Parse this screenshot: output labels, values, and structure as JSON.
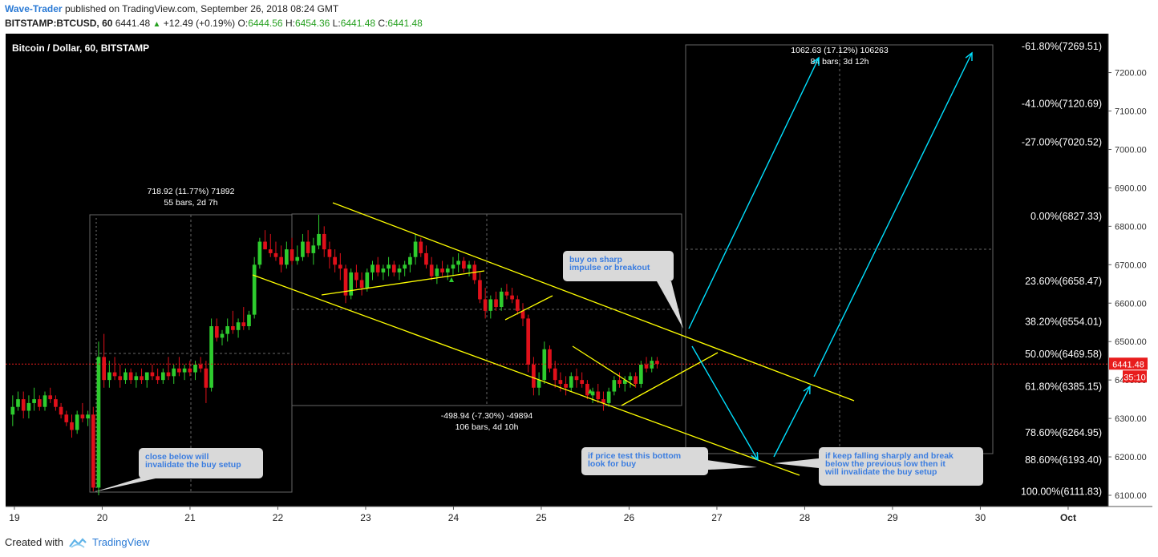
{
  "header": {
    "author": "Wave-Trader",
    "published": "published on TradingView.com, September 26, 2018 08:24 GMT",
    "symbol": "BITSTAMP:BTCUSD, 60",
    "last": "6441.48",
    "change": "+12.49 (+0.19%)",
    "o_label": "O:",
    "o": "6444.56",
    "h_label": "H:",
    "h": "6454.36",
    "l_label": "L:",
    "l": "6441.48",
    "c_label": "C:",
    "c": "6441.48"
  },
  "footer": {
    "created_with": "Created with",
    "brand": "TradingView"
  },
  "colors": {
    "background": "#000000",
    "up": "#2ecc2e",
    "down": "#e0101a",
    "channel": "#ffff00",
    "arrow": "#00e0ff",
    "price_badge": "#e81c1c",
    "callout_bg": "#d9d9d9",
    "callout_text": "#3b7de0"
  },
  "chart_data": {
    "type": "candlestick",
    "title": "Bitcoin / Dollar, 60, BITSTAMP",
    "x_ticks": [
      "19",
      "20",
      "21",
      "22",
      "23",
      "24",
      "25",
      "26",
      "27",
      "28",
      "29",
      "30",
      "Oct"
    ],
    "y_ticks": [
      6100,
      6200,
      6300,
      6400,
      6500,
      6600,
      6700,
      6800,
      6900,
      7000,
      7100,
      7200
    ],
    "y_range": [
      6080,
      7300
    ],
    "current_price": "6441.48",
    "countdown": "35:10",
    "candles_ohlc_hourly_day19_to_26": [
      [
        6310,
        6360,
        6280,
        6330
      ],
      [
        6330,
        6370,
        6320,
        6350
      ],
      [
        6350,
        6370,
        6300,
        6320
      ],
      [
        6320,
        6360,
        6300,
        6340
      ],
      [
        6340,
        6380,
        6320,
        6350
      ],
      [
        6350,
        6360,
        6320,
        6330
      ],
      [
        6330,
        6370,
        6320,
        6360
      ],
      [
        6360,
        6380,
        6340,
        6350
      ],
      [
        6350,
        6360,
        6320,
        6330
      ],
      [
        6330,
        6340,
        6300,
        6310
      ],
      [
        6310,
        6320,
        6280,
        6290
      ],
      [
        6290,
        6310,
        6250,
        6270
      ],
      [
        6270,
        6320,
        6260,
        6310
      ],
      [
        6310,
        6340,
        6290,
        6300
      ],
      [
        6300,
        6320,
        6280,
        6310
      ],
      [
        6310,
        6330,
        6110,
        6120
      ],
      [
        6120,
        6500,
        6100,
        6460
      ],
      [
        6460,
        6520,
        6380,
        6400
      ],
      [
        6400,
        6450,
        6380,
        6420
      ],
      [
        6420,
        6460,
        6400,
        6410
      ],
      [
        6410,
        6440,
        6380,
        6400
      ],
      [
        6400,
        6430,
        6390,
        6420
      ],
      [
        6420,
        6430,
        6390,
        6400
      ],
      [
        6400,
        6420,
        6380,
        6410
      ],
      [
        6410,
        6430,
        6390,
        6400
      ],
      [
        6400,
        6420,
        6380,
        6420
      ],
      [
        6420,
        6440,
        6400,
        6410
      ],
      [
        6410,
        6430,
        6390,
        6400
      ],
      [
        6400,
        6430,
        6390,
        6420
      ],
      [
        6420,
        6460,
        6400,
        6410
      ],
      [
        6410,
        6440,
        6390,
        6430
      ],
      [
        6430,
        6460,
        6410,
        6420
      ],
      [
        6420,
        6440,
        6400,
        6430
      ],
      [
        6430,
        6450,
        6410,
        6420
      ],
      [
        6420,
        6450,
        6400,
        6440
      ],
      [
        6440,
        6460,
        6420,
        6430
      ],
      [
        6430,
        6450,
        6340,
        6380
      ],
      [
        6380,
        6560,
        6370,
        6540
      ],
      [
        6540,
        6560,
        6500,
        6510
      ],
      [
        6510,
        6530,
        6490,
        6520
      ],
      [
        6520,
        6560,
        6500,
        6540
      ],
      [
        6540,
        6580,
        6520,
        6530
      ],
      [
        6530,
        6560,
        6510,
        6550
      ],
      [
        6550,
        6590,
        6530,
        6540
      ],
      [
        6540,
        6580,
        6530,
        6570
      ],
      [
        6570,
        6720,
        6560,
        6700
      ],
      [
        6700,
        6770,
        6690,
        6760
      ],
      [
        6760,
        6790,
        6740,
        6740
      ],
      [
        6740,
        6780,
        6720,
        6730
      ],
      [
        6730,
        6760,
        6710,
        6720
      ],
      [
        6720,
        6750,
        6680,
        6700
      ],
      [
        6700,
        6760,
        6690,
        6740
      ],
      [
        6740,
        6770,
        6700,
        6710
      ],
      [
        6710,
        6750,
        6700,
        6720
      ],
      [
        6720,
        6780,
        6710,
        6760
      ],
      [
        6760,
        6790,
        6720,
        6730
      ],
      [
        6730,
        6770,
        6700,
        6750
      ],
      [
        6750,
        6830,
        6740,
        6780
      ],
      [
        6780,
        6800,
        6720,
        6740
      ],
      [
        6740,
        6760,
        6690,
        6720
      ],
      [
        6720,
        6740,
        6680,
        6700
      ],
      [
        6700,
        6730,
        6660,
        6690
      ],
      [
        6690,
        6700,
        6600,
        6620
      ],
      [
        6620,
        6690,
        6610,
        6680
      ],
      [
        6680,
        6700,
        6640,
        6660
      ],
      [
        6660,
        6680,
        6620,
        6640
      ],
      [
        6640,
        6690,
        6630,
        6680
      ],
      [
        6680,
        6710,
        6660,
        6700
      ],
      [
        6700,
        6720,
        6670,
        6680
      ],
      [
        6680,
        6700,
        6660,
        6690
      ],
      [
        6690,
        6720,
        6670,
        6700
      ],
      [
        6700,
        6710,
        6670,
        6680
      ],
      [
        6680,
        6700,
        6660,
        6690
      ],
      [
        6690,
        6710,
        6670,
        6700
      ],
      [
        6700,
        6730,
        6680,
        6720
      ],
      [
        6720,
        6780,
        6700,
        6760
      ],
      [
        6760,
        6770,
        6720,
        6730
      ],
      [
        6730,
        6750,
        6690,
        6700
      ],
      [
        6700,
        6720,
        6660,
        6670
      ],
      [
        6670,
        6700,
        6650,
        6690
      ],
      [
        6690,
        6710,
        6670,
        6680
      ],
      [
        6680,
        6700,
        6660,
        6690
      ],
      [
        6690,
        6720,
        6670,
        6700
      ],
      [
        6700,
        6730,
        6680,
        6710
      ],
      [
        6710,
        6720,
        6680,
        6690
      ],
      [
        6690,
        6710,
        6670,
        6700
      ],
      [
        6700,
        6710,
        6650,
        6660
      ],
      [
        6660,
        6680,
        6600,
        6610
      ],
      [
        6610,
        6640,
        6560,
        6580
      ],
      [
        6580,
        6620,
        6560,
        6610
      ],
      [
        6610,
        6630,
        6580,
        6590
      ],
      [
        6590,
        6640,
        6580,
        6630
      ],
      [
        6630,
        6650,
        6610,
        6620
      ],
      [
        6620,
        6640,
        6600,
        6610
      ],
      [
        6610,
        6620,
        6570,
        6580
      ],
      [
        6580,
        6600,
        6540,
        6560
      ],
      [
        6560,
        6570,
        6420,
        6440
      ],
      [
        6440,
        6460,
        6360,
        6380
      ],
      [
        6380,
        6420,
        6360,
        6400
      ],
      [
        6400,
        6500,
        6390,
        6480
      ],
      [
        6480,
        6490,
        6420,
        6430
      ],
      [
        6430,
        6450,
        6380,
        6400
      ],
      [
        6400,
        6420,
        6370,
        6390
      ],
      [
        6390,
        6410,
        6360,
        6380
      ],
      [
        6380,
        6420,
        6370,
        6410
      ],
      [
        6410,
        6430,
        6380,
        6400
      ],
      [
        6400,
        6420,
        6380,
        6390
      ],
      [
        6390,
        6400,
        6350,
        6360
      ],
      [
        6360,
        6380,
        6340,
        6370
      ],
      [
        6370,
        6390,
        6340,
        6350
      ],
      [
        6350,
        6370,
        6320,
        6340
      ],
      [
        6340,
        6380,
        6330,
        6370
      ],
      [
        6370,
        6410,
        6360,
        6400
      ],
      [
        6400,
        6420,
        6380,
        6390
      ],
      [
        6390,
        6410,
        6370,
        6400
      ],
      [
        6400,
        6420,
        6380,
        6410
      ],
      [
        6410,
        6420,
        6380,
        6390
      ],
      [
        6390,
        6450,
        6380,
        6440
      ],
      [
        6440,
        6460,
        6420,
        6430
      ],
      [
        6430,
        6460,
        6420,
        6450
      ],
      [
        6450,
        6460,
        6430,
        6441.48
      ]
    ],
    "fib_levels": [
      {
        "label": "-61.80%(7269.51)",
        "price": 7269.51
      },
      {
        "label": "-41.00%(7120.69)",
        "price": 7120.69
      },
      {
        "label": "-27.00%(7020.52)",
        "price": 7020.52
      },
      {
        "label": "0.00%(6827.33)",
        "price": 6827.33
      },
      {
        "label": "23.60%(6658.47)",
        "price": 6658.47
      },
      {
        "label": "38.20%(6554.01)",
        "price": 6554.01
      },
      {
        "label": "50.00%(6469.58)",
        "price": 6469.58
      },
      {
        "label": "61.80%(6385.15)",
        "price": 6385.15
      },
      {
        "label": "78.60%(6264.95)",
        "price": 6264.95
      },
      {
        "label": "88.60%(6193.40)",
        "price": 6193.4
      },
      {
        "label": "100.00%(6111.83)",
        "price": 6111.83
      }
    ],
    "measurements": [
      {
        "line1": "718.92 (11.77%) 71892",
        "line2": "55 bars, 2d 7h"
      },
      {
        "line1": "-498.94 (-7.30%) -49894",
        "line2": "106 bars, 4d 10h"
      },
      {
        "line1": "1062.63 (17.12%) 106263",
        "line2": "84 bars, 3d 12h"
      }
    ],
    "callouts": [
      {
        "line1": "close below will",
        "line2": "invalidate the buy setup"
      },
      {
        "line1": "buy on sharp",
        "line2": "impulse or breakout"
      },
      {
        "line1": "if price test this bottom",
        "line2": "look for buy"
      },
      {
        "line1": "if keep falling sharply and break",
        "line2": "below the previous low then it",
        "line3": "will invalidate the buy setup"
      }
    ]
  }
}
